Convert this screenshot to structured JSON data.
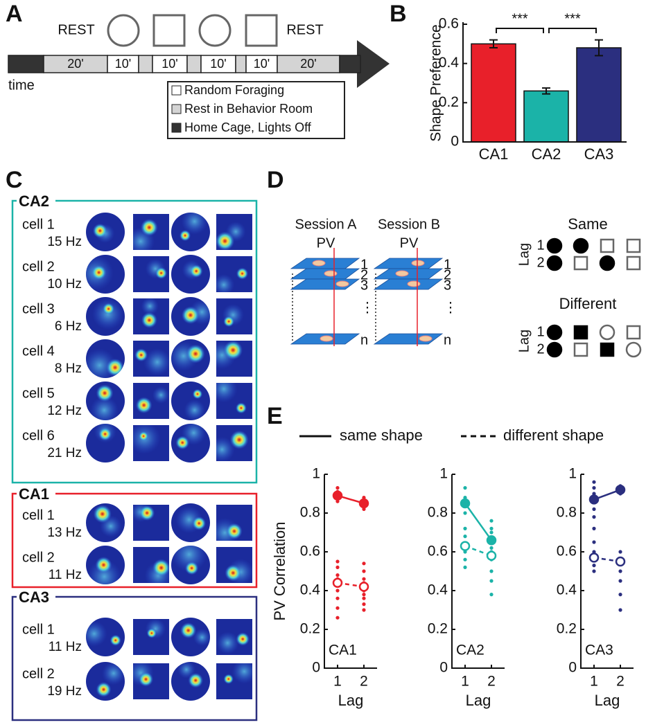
{
  "panel_a": {
    "label": "A",
    "rest": [
      "REST",
      "REST"
    ],
    "durations": [
      "20'",
      "10'",
      "10'",
      "10'",
      "10'",
      "20'"
    ],
    "time": "time",
    "legend": [
      "Random Foraging",
      "Rest in Behavior Room",
      "Home Cage, Lights Off"
    ]
  },
  "panel_b": {
    "label": "B"
  },
  "panel_c": {
    "label": "C",
    "groups": [
      {
        "title": "CA2",
        "color": "#1bb3a8",
        "cells": [
          {
            "name": "cell 1",
            "rate": "15 Hz"
          },
          {
            "name": "cell 2",
            "rate": "10 Hz"
          },
          {
            "name": "cell 3",
            "rate": "6 Hz"
          },
          {
            "name": "cell 4",
            "rate": "8 Hz"
          },
          {
            "name": "cell 5",
            "rate": "12 Hz"
          },
          {
            "name": "cell 6",
            "rate": "21 Hz"
          }
        ]
      },
      {
        "title": "CA1",
        "color": "#e8202a",
        "cells": [
          {
            "name": "cell 1",
            "rate": "13 Hz"
          },
          {
            "name": "cell 2",
            "rate": "11 Hz"
          }
        ]
      },
      {
        "title": "CA3",
        "color": "#2b2f7f",
        "cells": [
          {
            "name": "cell 1",
            "rate": "11 Hz"
          },
          {
            "name": "cell 2",
            "rate": "19 Hz"
          }
        ]
      }
    ]
  },
  "panel_d": {
    "label": "D",
    "sessions": [
      "Session A",
      "Session B"
    ],
    "pv": "PV",
    "layers": [
      "1",
      "2",
      "3",
      "⋮",
      "n"
    ],
    "same": "Same",
    "different": "Different",
    "lag": "Lag",
    "lag_rows": [
      "1",
      "2"
    ]
  },
  "panel_e": {
    "label": "E"
  },
  "chart_data": [
    {
      "type": "bar",
      "ylabel": "Shape Preference",
      "categories": [
        "CA1",
        "CA2",
        "CA3"
      ],
      "values": [
        0.5,
        0.26,
        0.48
      ],
      "errors": [
        0.02,
        0.015,
        0.04
      ],
      "colors": [
        "#e8202a",
        "#1bb3a8",
        "#2b2f7f"
      ],
      "ylim": [
        0,
        0.6
      ],
      "yticks": [
        0,
        0.2,
        0.4,
        0.6
      ],
      "significance": [
        "***",
        "***"
      ]
    },
    {
      "type": "line",
      "title": "CA1",
      "ylabel": "PV Correlation",
      "xlabel": "Lag",
      "color": "#e8202a",
      "x": [
        1,
        2
      ],
      "xlim": [
        0.5,
        2.5
      ],
      "xticks": [
        1,
        2
      ],
      "ylim": [
        0,
        1
      ],
      "yticks": [
        0,
        0.2,
        0.4,
        0.6,
        0.8,
        1
      ],
      "series": [
        {
          "name": "same shape",
          "style": "solid",
          "values": [
            0.89,
            0.85
          ],
          "points_x": [
            1,
            1,
            1,
            1,
            1,
            2,
            2,
            2,
            2
          ],
          "points_y": [
            0.86,
            0.88,
            0.9,
            0.91,
            0.93,
            0.82,
            0.84,
            0.86,
            0.88
          ]
        },
        {
          "name": "different shape",
          "style": "dashed",
          "values": [
            0.44,
            0.42
          ],
          "points_x": [
            1,
            1,
            1,
            1,
            1,
            1,
            1,
            1,
            1,
            2,
            2,
            2,
            2,
            2,
            2,
            2,
            2,
            2,
            2
          ],
          "points_y": [
            0.26,
            0.31,
            0.36,
            0.4,
            0.43,
            0.46,
            0.48,
            0.52,
            0.55,
            0.3,
            0.33,
            0.36,
            0.38,
            0.4,
            0.42,
            0.44,
            0.46,
            0.5,
            0.54
          ]
        }
      ]
    },
    {
      "type": "line",
      "title": "CA2",
      "xlabel": "Lag",
      "color": "#1bb3a8",
      "x": [
        1,
        2
      ],
      "xlim": [
        0.5,
        2.5
      ],
      "xticks": [
        1,
        2
      ],
      "ylim": [
        0,
        1
      ],
      "yticks": [
        0,
        0.2,
        0.4,
        0.6,
        0.8,
        1
      ],
      "series": [
        {
          "style": "solid",
          "values": [
            0.85,
            0.66
          ],
          "points_x": [
            1,
            1,
            1,
            1,
            2,
            2,
            2,
            2
          ],
          "points_y": [
            0.93,
            0.88,
            0.85,
            0.8,
            0.76,
            0.7,
            0.66,
            0.62
          ]
        },
        {
          "style": "dashed",
          "values": [
            0.63,
            0.58
          ],
          "points_x": [
            1,
            1,
            1,
            1,
            1,
            1,
            2,
            2,
            2,
            2,
            2,
            2,
            2
          ],
          "points_y": [
            0.52,
            0.56,
            0.6,
            0.64,
            0.68,
            0.72,
            0.38,
            0.45,
            0.5,
            0.56,
            0.6,
            0.66,
            0.72
          ]
        }
      ]
    },
    {
      "type": "line",
      "title": "CA3",
      "xlabel": "Lag",
      "color": "#2b2f7f",
      "x": [
        1,
        2
      ],
      "xlim": [
        0.5,
        2.5
      ],
      "xticks": [
        1,
        2
      ],
      "ylim": [
        0,
        1
      ],
      "yticks": [
        0,
        0.2,
        0.4,
        0.6,
        0.8,
        1
      ],
      "series": [
        {
          "style": "solid",
          "values": [
            0.87,
            0.92
          ],
          "points_x": [
            1,
            1,
            1,
            1,
            1,
            1,
            1,
            2,
            2
          ],
          "points_y": [
            0.96,
            0.93,
            0.9,
            0.86,
            0.82,
            0.78,
            0.72,
            0.9,
            0.94
          ]
        },
        {
          "style": "dashed",
          "values": [
            0.57,
            0.55
          ],
          "points_x": [
            1,
            1,
            1,
            1,
            1,
            2,
            2,
            2,
            2,
            2,
            2
          ],
          "points_y": [
            0.5,
            0.53,
            0.56,
            0.6,
            0.65,
            0.3,
            0.38,
            0.45,
            0.5,
            0.55,
            0.6
          ]
        }
      ]
    }
  ]
}
